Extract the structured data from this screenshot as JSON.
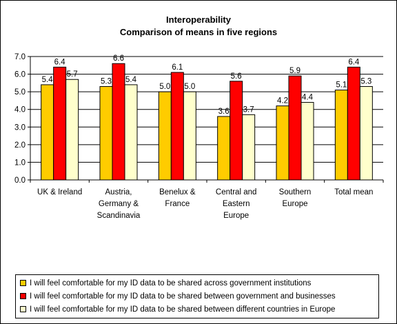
{
  "chart_data": {
    "type": "bar",
    "title_lines": [
      "Interoperability",
      "Comparison of means in five regions"
    ],
    "categories": [
      [
        "UK & Ireland"
      ],
      [
        "Austria,",
        "Germany &",
        "Scandinavia"
      ],
      [
        "Benelux &",
        "France"
      ],
      [
        "Central and",
        "Eastern",
        "Europe"
      ],
      [
        "Southern",
        "Europe"
      ],
      [
        "Total mean"
      ]
    ],
    "series": [
      {
        "name": "I will feel comfortable for my ID data to be shared across government institutions",
        "color": "#FFCC00",
        "values": [
          5.4,
          5.3,
          5.0,
          3.6,
          4.2,
          5.1
        ],
        "labels": [
          "5.4",
          "5.3",
          "5.0",
          "3.6",
          "4.2",
          "5.1"
        ]
      },
      {
        "name": "I will feel comfortable for my ID data to be shared between government and businesses",
        "color": "#FF0000",
        "values": [
          6.4,
          6.6,
          6.1,
          5.6,
          5.9,
          6.4
        ],
        "labels": [
          "6.4",
          "6.6",
          "6.1",
          "5.6",
          "5.9",
          "6.4"
        ]
      },
      {
        "name": "I will feel comfortable for my ID data to be shared between different countries in Europe",
        "color": "#FFFFCC",
        "values": [
          5.7,
          5.4,
          5.0,
          3.7,
          4.4,
          5.3
        ],
        "labels": [
          "5.7",
          "5.4",
          "5.0",
          "3.7",
          "4.4",
          "5.3"
        ]
      }
    ],
    "ylim": [
      0,
      7
    ],
    "yticks": [
      "0.0",
      "1.0",
      "2.0",
      "3.0",
      "4.0",
      "5.0",
      "6.0",
      "7.0"
    ],
    "grid": true,
    "legend_position": "bottom"
  }
}
